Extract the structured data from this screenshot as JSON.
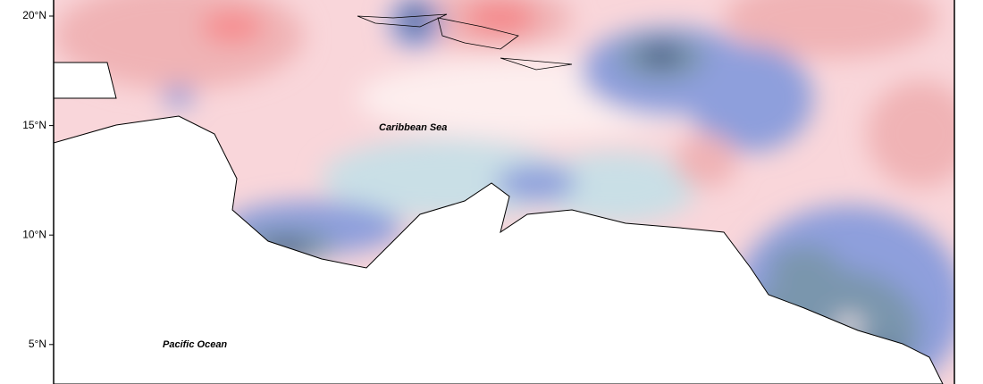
{
  "axis": {
    "lat_ticks": [
      "20°N",
      "15°N",
      "10°N",
      "5°N"
    ]
  },
  "labels": {
    "caribbean_sea": "Caribbean Sea",
    "pacific_ocean": "Pacific Ocean"
  }
}
